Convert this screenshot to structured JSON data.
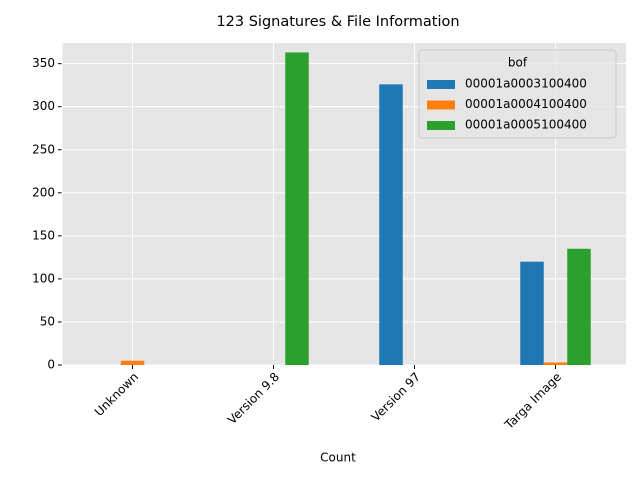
{
  "chart_data": {
    "type": "bar",
    "title": "123 Signatures & File Information",
    "x_label": "Count",
    "categories": [
      "Unknown",
      "Version 9.8",
      "Version 97",
      "Targa Image"
    ],
    "series": [
      {
        "name": "00001a0003100400",
        "color": "#1f77b4",
        "values": [
          0,
          0,
          326,
          120
        ]
      },
      {
        "name": "00001a0004100400",
        "color": "#ff7f0e",
        "values": [
          5,
          0,
          0,
          3
        ]
      },
      {
        "name": "00001a0005100400",
        "color": "#2ca02c",
        "values": [
          0,
          363,
          0,
          135
        ]
      }
    ],
    "legend_title": "bof",
    "legend": "upper right",
    "ylim": [
      0,
      374
    ],
    "yticks": [
      0,
      50,
      100,
      150,
      200,
      250,
      300,
      350
    ],
    "grid": true
  }
}
